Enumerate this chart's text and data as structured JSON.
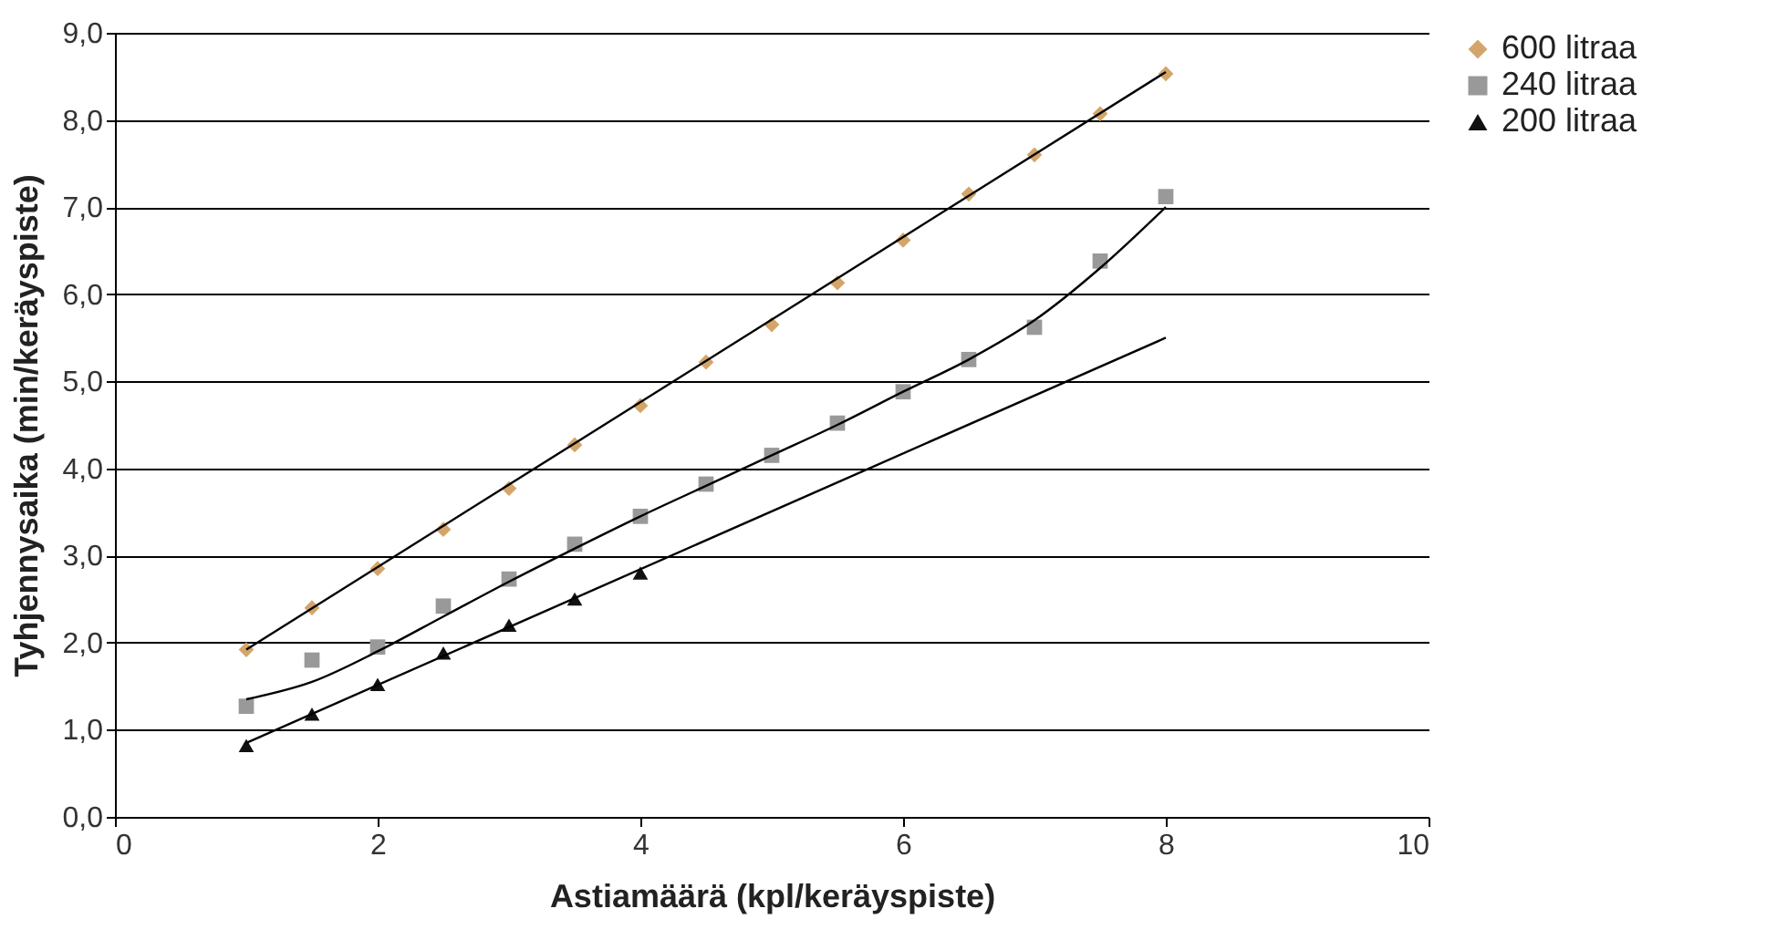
{
  "chart_data": {
    "type": "scatter",
    "xlabel": "Astiamäärä (kpl/keräyspiste)",
    "ylabel": "Tyhjennysaika (min/keräyspiste)",
    "xlim": [
      0,
      10
    ],
    "xticks": [
      0,
      2,
      4,
      6,
      8,
      10
    ],
    "ylim": [
      0,
      9
    ],
    "yticks": [
      {
        "value": 0,
        "label": "0,0"
      },
      {
        "value": 1,
        "label": "1,0"
      },
      {
        "value": 2,
        "label": "2,0"
      },
      {
        "value": 3,
        "label": "3,0"
      },
      {
        "value": 4,
        "label": "4,0"
      },
      {
        "value": 5,
        "label": "5,0"
      },
      {
        "value": 6,
        "label": "6,0"
      },
      {
        "value": 7,
        "label": "7,0"
      },
      {
        "value": 8,
        "label": "8,0"
      },
      {
        "value": 9,
        "label": "9,0"
      }
    ],
    "grid": "y",
    "legend": "right",
    "series": [
      {
        "name": "600 litraa",
        "marker": "diamond",
        "color": "#d4a56a",
        "x": [
          1,
          1.5,
          2,
          2.5,
          3,
          3.5,
          4,
          4.5,
          5,
          5.5,
          6,
          6.5,
          7,
          7.5,
          8
        ],
        "values": [
          1.92,
          2.4,
          2.85,
          3.3,
          3.77,
          4.27,
          4.72,
          5.22,
          5.65,
          6.13,
          6.62,
          7.15,
          7.6,
          8.07,
          8.53
        ]
      },
      {
        "name": "240 litraa",
        "marker": "square",
        "color": "#999999",
        "x": [
          1,
          1.5,
          2,
          2.5,
          3,
          3.5,
          4,
          4.5,
          5,
          5.5,
          6,
          6.5,
          7,
          7.5,
          8
        ],
        "values": [
          1.27,
          1.8,
          1.95,
          2.42,
          2.73,
          3.13,
          3.45,
          3.82,
          4.15,
          4.52,
          4.88,
          5.25,
          5.62,
          6.38,
          7.12
        ]
      },
      {
        "name": "200 litraa",
        "marker": "triangle",
        "color": "#111111",
        "x": [
          1,
          1.5,
          2,
          2.5,
          3,
          3.5,
          4
        ],
        "values": [
          0.82,
          1.18,
          1.52,
          1.88,
          2.2,
          2.5,
          2.8
        ]
      },
      {
        "type": "line",
        "color": "#000000",
        "x": [
          1,
          8
        ],
        "values": [
          1.92,
          8.55
        ]
      },
      {
        "type": "line",
        "color": "#000000",
        "x": [
          1,
          1.5,
          2,
          2.5,
          3,
          3.5,
          4,
          4.5,
          5,
          5.5,
          6,
          6.5,
          7,
          7.5,
          8
        ],
        "values": [
          1.35,
          1.55,
          1.9,
          2.3,
          2.7,
          3.08,
          3.45,
          3.8,
          4.15,
          4.5,
          4.88,
          5.25,
          5.7,
          6.3,
          7.0
        ]
      },
      {
        "type": "line",
        "color": "#000000",
        "x": [
          1,
          8
        ],
        "values": [
          0.85,
          5.5
        ]
      }
    ]
  }
}
